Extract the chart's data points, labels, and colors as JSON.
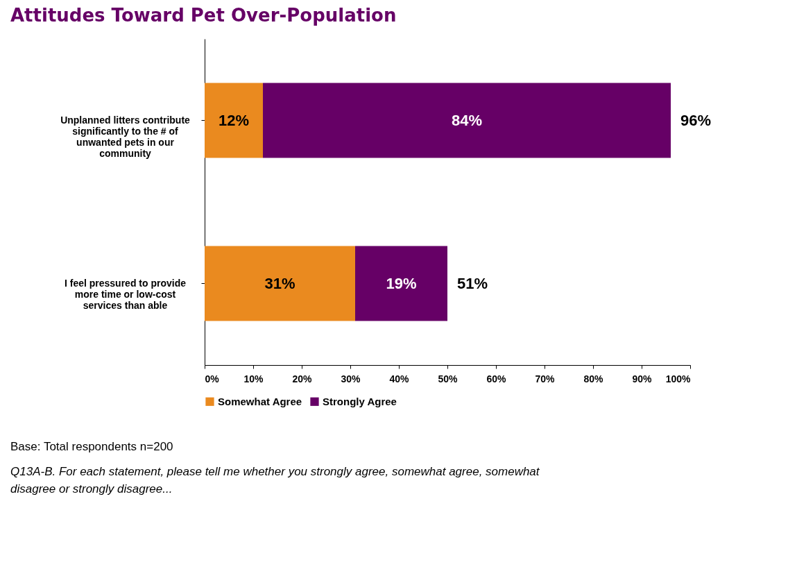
{
  "chart_data": {
    "type": "bar",
    "orientation": "horizontal",
    "stacked": true,
    "title": "Attitudes Toward Pet Over-Population",
    "categories": [
      "Unplanned litters contribute significantly to the # of unwanted pets in our community",
      "I feel pressured to provide more time or low-cost services than able"
    ],
    "series": [
      {
        "name": "Somewhat Agree",
        "color": "#ea8a1f",
        "values": [
          12,
          31
        ],
        "value_labels": [
          "12%",
          "31%"
        ]
      },
      {
        "name": "Strongly Agree",
        "color": "#660066",
        "values": [
          84,
          19
        ],
        "value_labels": [
          "84%",
          "19%"
        ]
      }
    ],
    "totals": [
      "96%",
      "51%"
    ],
    "xlim": [
      0,
      100
    ],
    "xticks": [
      {
        "value": 0,
        "label": "0%"
      },
      {
        "value": 10,
        "label": "10%"
      },
      {
        "value": 20,
        "label": "20%"
      },
      {
        "value": 30,
        "label": "30%"
      },
      {
        "value": 40,
        "label": "40%"
      },
      {
        "value": 50,
        "label": "50%"
      },
      {
        "value": 60,
        "label": "60%"
      },
      {
        "value": 70,
        "label": "70%"
      },
      {
        "value": 80,
        "label": "80%"
      },
      {
        "value": 90,
        "label": "90%"
      },
      {
        "value": 100,
        "label": "100%"
      }
    ],
    "grid": false,
    "legend": "bottom",
    "annotations": [
      "Base: Total respondents n=200",
      "Q13A-B. For each statement, please tell me whether you strongly agree, somewhat agree, somewhat disagree or strongly disagree..."
    ]
  }
}
